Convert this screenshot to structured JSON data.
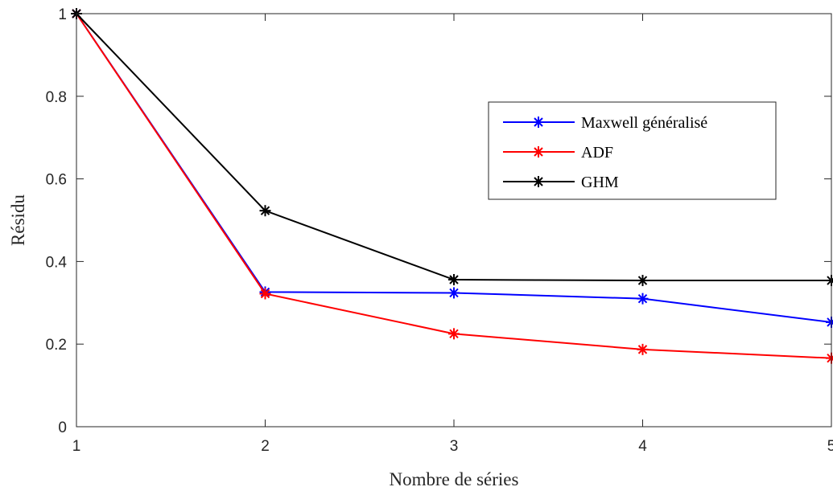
{
  "chart_data": {
    "type": "line",
    "xlabel": "Nombre de séries",
    "ylabel": "Résidu",
    "x": [
      1,
      2,
      3,
      4,
      5
    ],
    "xlim": [
      1,
      5
    ],
    "ylim": [
      0,
      1
    ],
    "xticks": [
      1,
      2,
      3,
      4,
      5
    ],
    "yticks": [
      0,
      0.2,
      0.4,
      0.6,
      0.8,
      1
    ],
    "xtick_labels": [
      "1",
      "2",
      "3",
      "4",
      "5"
    ],
    "ytick_labels": [
      "0",
      "0.2",
      "0.4",
      "0.6",
      "0.8",
      "1"
    ],
    "grid": false,
    "legend_position": "upper-right",
    "series": [
      {
        "name": "Maxwell généralisé",
        "color": "#0000ff",
        "marker": "asterisk",
        "values": [
          1.0,
          0.326,
          0.324,
          0.31,
          0.253
        ]
      },
      {
        "name": "ADF",
        "color": "#ff0000",
        "marker": "asterisk",
        "values": [
          1.0,
          0.322,
          0.225,
          0.187,
          0.166
        ]
      },
      {
        "name": "GHM",
        "color": "#000000",
        "marker": "asterisk",
        "values": [
          1.0,
          0.523,
          0.356,
          0.354,
          0.354
        ]
      }
    ]
  }
}
